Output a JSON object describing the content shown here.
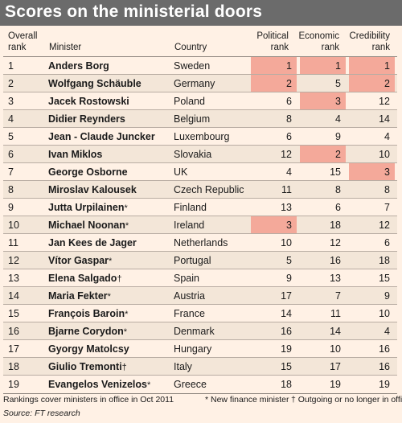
{
  "title": "Scores on the ministerial doors",
  "headers": {
    "overall_rank": [
      "Overall",
      "rank"
    ],
    "minister": "Minister",
    "country": "Country",
    "political": [
      "Political",
      "rank"
    ],
    "economic": [
      "Economic",
      "rank"
    ],
    "credibility": [
      "Credibility",
      "rank"
    ]
  },
  "highlight_color": "#f4a99a",
  "chart_data": {
    "type": "table",
    "columns": [
      "Overall rank",
      "Minister",
      "Country",
      "Political rank",
      "Economic rank",
      "Credibility rank"
    ],
    "rows": [
      {
        "rank": "1",
        "minister": "Anders Borg",
        "mark": "",
        "country": "Sweden",
        "political": "1",
        "economic": "1",
        "credibility": "1",
        "highlight": [
          "political",
          "economic",
          "credibility"
        ]
      },
      {
        "rank": "2",
        "minister": "Wolfgang Schäuble",
        "mark": "",
        "country": "Germany",
        "political": "2",
        "economic": "5",
        "credibility": "2",
        "highlight": [
          "political",
          "credibility"
        ]
      },
      {
        "rank": "3",
        "minister": "Jacek Rostowski",
        "mark": "",
        "country": "Poland",
        "political": "6",
        "economic": "3",
        "credibility": "12",
        "highlight": [
          "economic"
        ]
      },
      {
        "rank": "4",
        "minister": "Didier Reynders",
        "mark": "",
        "country": "Belgium",
        "political": "8",
        "economic": "4",
        "credibility": "14",
        "highlight": []
      },
      {
        "rank": "5",
        "minister": "Jean - Claude Juncker",
        "mark": "",
        "country": "Luxembourg",
        "political": "6",
        "economic": "9",
        "credibility": "4",
        "highlight": []
      },
      {
        "rank": "6",
        "minister": "Ivan Miklos",
        "mark": "",
        "country": "Slovakia",
        "political": "12",
        "economic": "2",
        "credibility": "10",
        "highlight": [
          "economic"
        ]
      },
      {
        "rank": "7",
        "minister": "George Osborne",
        "mark": "",
        "country": "UK",
        "political": "4",
        "economic": "15",
        "credibility": "3",
        "highlight": [
          "credibility"
        ]
      },
      {
        "rank": "8",
        "minister": "Miroslav Kalousek",
        "mark": "",
        "country": "Czech Republic",
        "political": "11",
        "economic": "8",
        "credibility": "8",
        "highlight": []
      },
      {
        "rank": "9",
        "minister": "Jutta Urpilainen",
        "mark": "*",
        "country": "Finland",
        "political": "13",
        "economic": "6",
        "credibility": "7",
        "highlight": []
      },
      {
        "rank": "10",
        "minister": "Michael Noonan",
        "mark": "*",
        "country": "Ireland",
        "political": "3",
        "economic": "18",
        "credibility": "12",
        "highlight": [
          "political"
        ]
      },
      {
        "rank": "11",
        "minister": "Jan Kees de Jager",
        "mark": "",
        "country": "Netherlands",
        "political": "10",
        "economic": "12",
        "credibility": "6",
        "highlight": []
      },
      {
        "rank": "12",
        "minister": "Vítor Gaspar",
        "mark": "*",
        "country": "Portugal",
        "political": "5",
        "economic": "16",
        "credibility": "18",
        "highlight": []
      },
      {
        "rank": "13",
        "minister": "Elena Salgado",
        "mark": "†",
        "country": "Spain",
        "political": "9",
        "economic": "13",
        "credibility": "15",
        "highlight": []
      },
      {
        "rank": "14",
        "minister": "Maria Fekter",
        "mark": "*",
        "country": "Austria",
        "political": "17",
        "economic": "7",
        "credibility": "9",
        "highlight": []
      },
      {
        "rank": "15",
        "minister": "François Baroin",
        "mark": "*",
        "country": "France",
        "political": "14",
        "economic": "11",
        "credibility": "10",
        "highlight": []
      },
      {
        "rank": "16",
        "minister": "Bjarne Corydon",
        "mark": "*",
        "country": "Denmark",
        "political": "16",
        "economic": "14",
        "credibility": "4",
        "highlight": []
      },
      {
        "rank": "17",
        "minister": "Gyorgy Matolcsy",
        "mark": "",
        "country": "Hungary",
        "political": "19",
        "economic": "10",
        "credibility": "16",
        "highlight": []
      },
      {
        "rank": "18",
        "minister": "Giulio Tremonti",
        "mark": "†",
        "country": "Italy",
        "political": "15",
        "economic": "17",
        "credibility": "16",
        "highlight": []
      },
      {
        "rank": "19",
        "minister": "Evangelos Venizelos",
        "mark": "*",
        "country": "Greece",
        "political": "18",
        "economic": "19",
        "credibility": "19",
        "highlight": []
      }
    ]
  },
  "footnotes": {
    "coverage": "Rankings cover ministers in office in Oct 2011",
    "new_minister": "* New finance minister",
    "outgoing": "† Outgoing or no longer in office",
    "source": "Source: FT research"
  }
}
